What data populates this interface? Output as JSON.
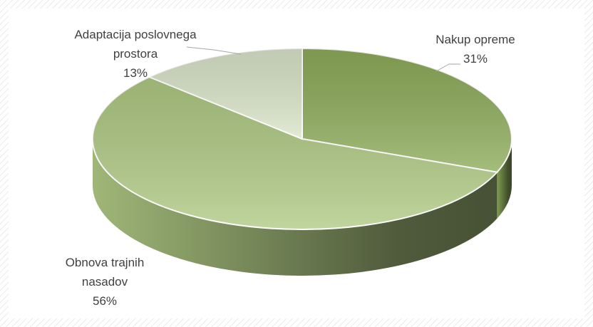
{
  "chart_data": {
    "type": "pie",
    "categories": [
      "Nakup opreme",
      "Obnova trajnih nasadov",
      "Adaptacija poslovnega prostora"
    ],
    "values": [
      31,
      56,
      13
    ],
    "value_labels": [
      "31%",
      "56%",
      "13%"
    ],
    "colors": [
      "#8fad5c",
      "#b1cb85",
      "#dce6cb"
    ]
  }
}
